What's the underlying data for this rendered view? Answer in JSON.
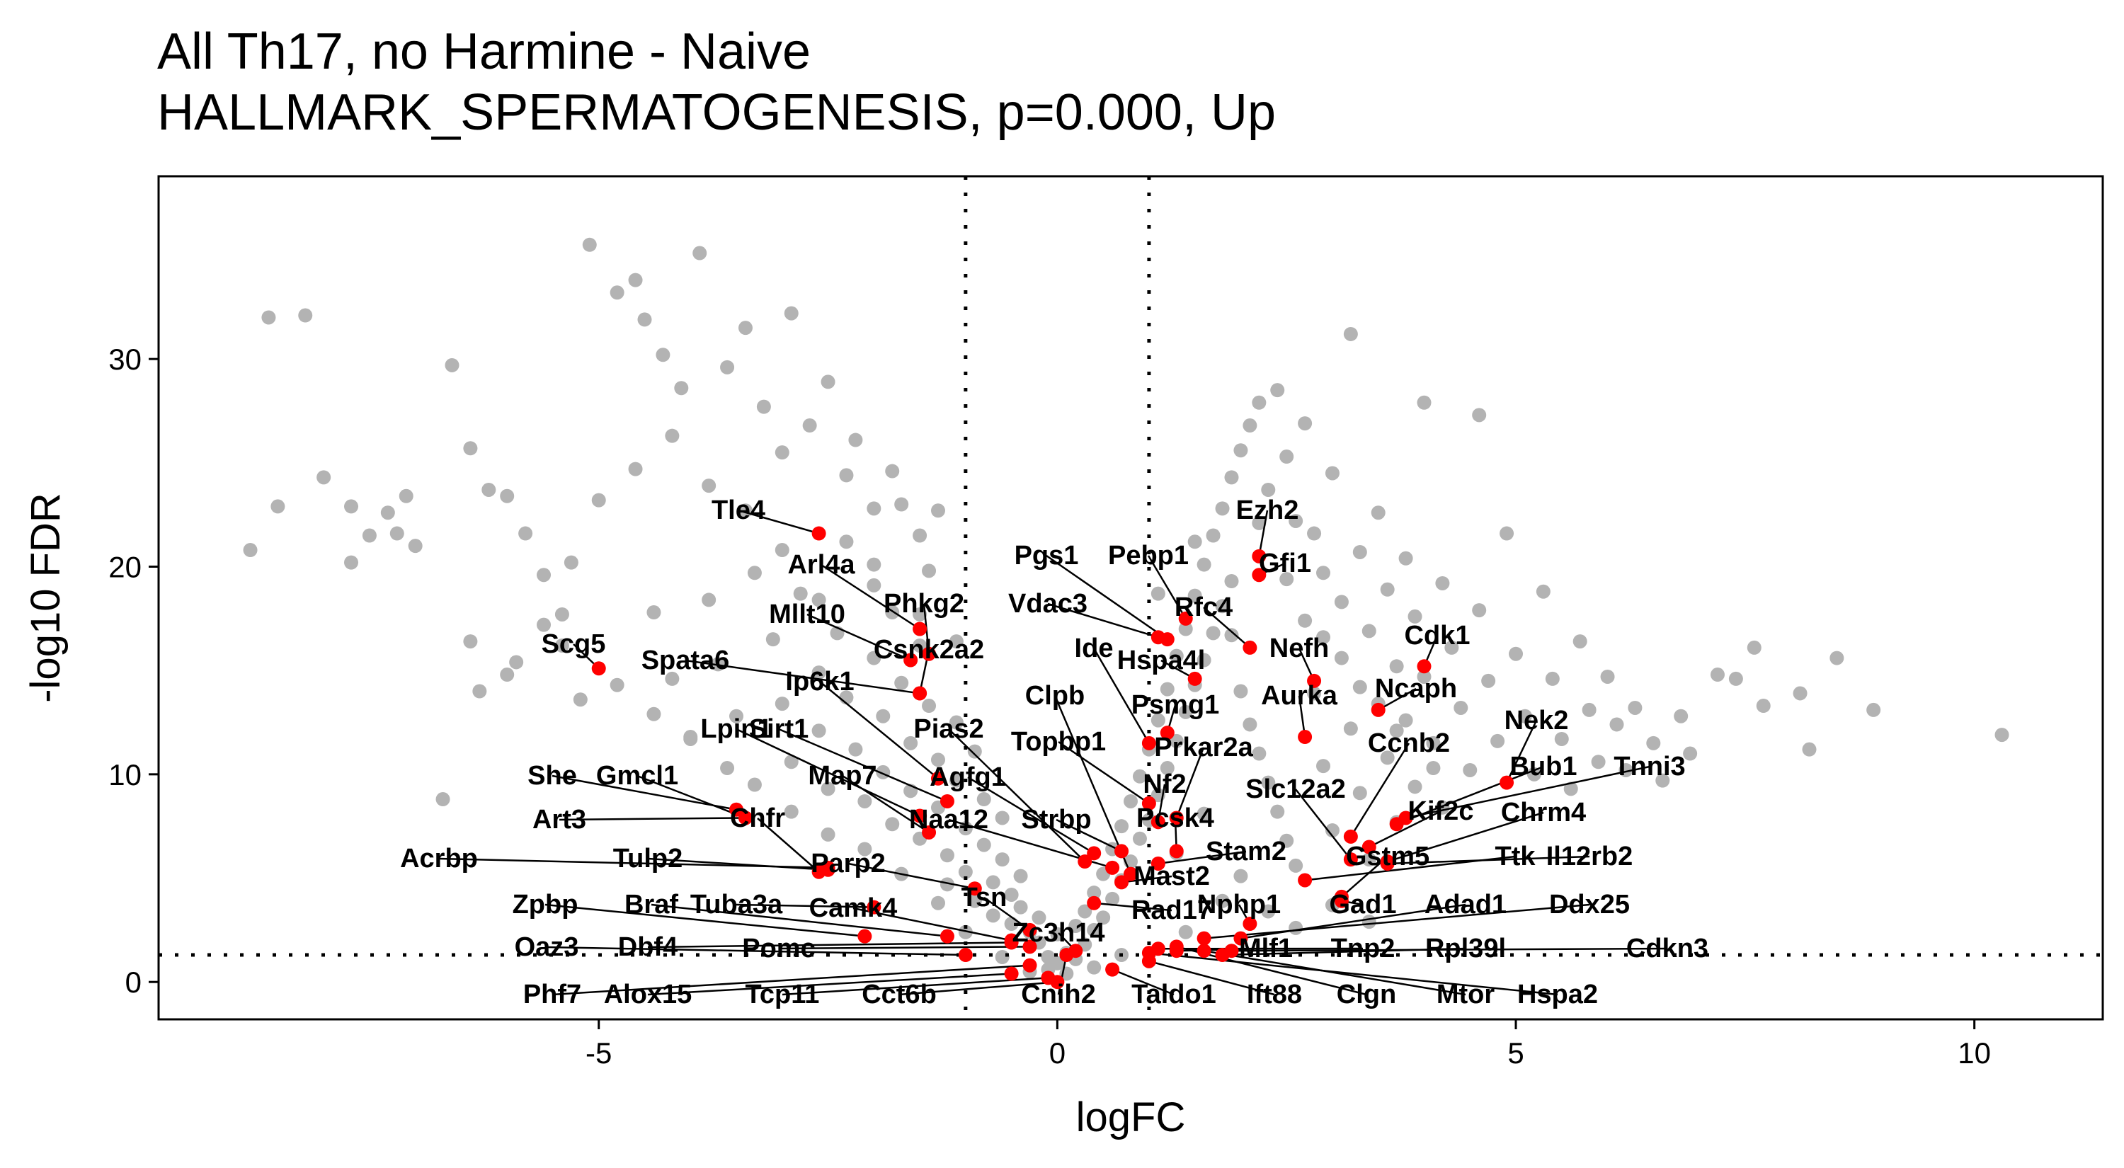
{
  "title_lines": [
    "All Th17, no Harmine - Naive",
    "HALLMARK_SPERMATOGENESIS, p=0.000, Up"
  ],
  "colors": {
    "background_points": "#b3b3b3",
    "highlight_points": "#ff0000",
    "threshold_lines": "#000000"
  },
  "chart_data": {
    "type": "scatter",
    "xlabel": "logFC",
    "ylabel": "-log10 FDR",
    "xlim": [
      -9.8,
      11.4
    ],
    "ylim": [
      -1.8,
      38.8
    ],
    "x_ticks": [
      -5,
      0,
      5,
      10
    ],
    "y_ticks": [
      0,
      10,
      20,
      30
    ],
    "grid": false,
    "thresholds": {
      "logFC": [
        -1,
        1
      ],
      "neg_log10_fdr": 1.3
    },
    "background_points": [
      [
        -8.6,
        32.0
      ],
      [
        -8.2,
        32.1
      ],
      [
        -8.5,
        22.9
      ],
      [
        -8.0,
        24.3
      ],
      [
        -7.7,
        22.9
      ],
      [
        -7.7,
        20.2
      ],
      [
        -7.5,
        21.5
      ],
      [
        -7.3,
        22.6
      ],
      [
        -7.2,
        21.6
      ],
      [
        -8.8,
        20.8
      ],
      [
        -7.0,
        21.0
      ],
      [
        -7.1,
        23.4
      ],
      [
        -6.6,
        29.7
      ],
      [
        -6.4,
        25.7
      ],
      [
        -6.2,
        23.7
      ],
      [
        -6.0,
        23.4
      ],
      [
        -5.8,
        21.6
      ],
      [
        -5.6,
        19.6
      ],
      [
        -5.4,
        17.7
      ],
      [
        -5.3,
        20.2
      ],
      [
        -5.1,
        35.5
      ],
      [
        -5.0,
        23.2
      ],
      [
        -4.8,
        33.2
      ],
      [
        -4.6,
        33.8
      ],
      [
        -4.5,
        31.9
      ],
      [
        -4.3,
        30.2
      ],
      [
        -4.1,
        28.6
      ],
      [
        -3.9,
        35.1
      ],
      [
        -3.6,
        29.6
      ],
      [
        -3.4,
        31.5
      ],
      [
        -3.2,
        27.7
      ],
      [
        -3.0,
        25.5
      ],
      [
        -2.9,
        32.2
      ],
      [
        -2.7,
        26.8
      ],
      [
        -2.5,
        28.9
      ],
      [
        -2.3,
        24.4
      ],
      [
        -2.2,
        26.1
      ],
      [
        -2.0,
        22.8
      ],
      [
        -1.8,
        24.6
      ],
      [
        -1.7,
        23.0
      ],
      [
        -1.5,
        21.5
      ],
      [
        -1.4,
        19.8
      ],
      [
        -1.3,
        22.7
      ],
      [
        -6.7,
        8.8
      ],
      [
        -6.4,
        16.4
      ],
      [
        -6.0,
        14.8
      ],
      [
        -5.6,
        17.2
      ],
      [
        -5.2,
        13.6
      ],
      [
        -4.4,
        17.8
      ],
      [
        -4.2,
        14.6
      ],
      [
        -4.0,
        11.7
      ],
      [
        -3.8,
        18.4
      ],
      [
        -3.7,
        15.3
      ],
      [
        -3.5,
        12.8
      ],
      [
        -3.3,
        19.7
      ],
      [
        -3.1,
        16.5
      ],
      [
        -3.0,
        13.4
      ],
      [
        -2.9,
        10.6
      ],
      [
        -2.8,
        18.7
      ],
      [
        -2.6,
        14.9
      ],
      [
        -2.6,
        12.1
      ],
      [
        -2.5,
        9.3
      ],
      [
        -2.4,
        16.8
      ],
      [
        -2.3,
        13.7
      ],
      [
        -2.2,
        11.2
      ],
      [
        -2.1,
        8.7
      ],
      [
        -2.0,
        19.1
      ],
      [
        -2.0,
        15.6
      ],
      [
        -1.9,
        12.8
      ],
      [
        -1.9,
        10.1
      ],
      [
        -1.8,
        7.6
      ],
      [
        -1.8,
        17.8
      ],
      [
        -1.7,
        14.4
      ],
      [
        -1.6,
        11.5
      ],
      [
        -1.6,
        9.2
      ],
      [
        -1.5,
        6.9
      ],
      [
        -1.5,
        16.2
      ],
      [
        -1.4,
        13.3
      ],
      [
        -1.3,
        10.7
      ],
      [
        -1.3,
        8.4
      ],
      [
        -1.2,
        6.1
      ],
      [
        -1.2,
        4.7
      ],
      [
        -1.1,
        12.5
      ],
      [
        -1.1,
        9.7
      ],
      [
        -1.0,
        7.4
      ],
      [
        -1.0,
        5.3
      ],
      [
        -0.9,
        3.9
      ],
      [
        -0.9,
        11.1
      ],
      [
        -0.8,
        8.8
      ],
      [
        -0.8,
        6.6
      ],
      [
        -0.7,
        4.8
      ],
      [
        -0.7,
        3.2
      ],
      [
        -0.6,
        7.9
      ],
      [
        -0.6,
        5.9
      ],
      [
        -0.5,
        4.2
      ],
      [
        -0.5,
        2.8
      ],
      [
        -0.4,
        5.1
      ],
      [
        -0.4,
        3.6
      ],
      [
        -0.3,
        2.4
      ],
      [
        -0.3,
        1.7
      ],
      [
        -0.2,
        3.1
      ],
      [
        -0.2,
        1.9
      ],
      [
        -0.1,
        1.2
      ],
      [
        -0.1,
        0.6
      ],
      [
        0.0,
        2.3
      ],
      [
        0.0,
        0.9
      ],
      [
        0.1,
        1.4
      ],
      [
        0.1,
        0.4
      ],
      [
        0.2,
        2.7
      ],
      [
        0.2,
        1.1
      ],
      [
        0.3,
        3.4
      ],
      [
        0.3,
        1.8
      ],
      [
        0.4,
        4.3
      ],
      [
        0.4,
        2.5
      ],
      [
        0.5,
        5.2
      ],
      [
        0.5,
        3.1
      ],
      [
        0.6,
        6.4
      ],
      [
        0.6,
        4.0
      ],
      [
        0.7,
        7.5
      ],
      [
        0.7,
        4.9
      ],
      [
        0.8,
        8.7
      ],
      [
        0.8,
        5.8
      ],
      [
        0.9,
        9.9
      ],
      [
        0.9,
        6.9
      ],
      [
        1.0,
        11.2
      ],
      [
        1.0,
        7.8
      ],
      [
        1.1,
        12.6
      ],
      [
        1.1,
        9.0
      ],
      [
        1.2,
        14.1
      ],
      [
        1.2,
        10.3
      ],
      [
        1.3,
        15.7
      ],
      [
        1.3,
        11.6
      ],
      [
        1.4,
        17.0
      ],
      [
        1.4,
        13.0
      ],
      [
        1.5,
        18.6
      ],
      [
        1.5,
        14.3
      ],
      [
        1.6,
        20.1
      ],
      [
        1.6,
        15.5
      ],
      [
        1.7,
        21.5
      ],
      [
        1.7,
        16.8
      ],
      [
        1.8,
        22.8
      ],
      [
        1.8,
        18.1
      ],
      [
        1.9,
        24.3
      ],
      [
        1.9,
        19.3
      ],
      [
        2.0,
        25.6
      ],
      [
        2.0,
        14.0
      ],
      [
        2.1,
        26.8
      ],
      [
        2.1,
        12.4
      ],
      [
        2.2,
        27.9
      ],
      [
        2.2,
        11.0
      ],
      [
        2.3,
        23.7
      ],
      [
        2.3,
        9.6
      ],
      [
        2.4,
        28.5
      ],
      [
        2.4,
        8.2
      ],
      [
        2.5,
        25.3
      ],
      [
        2.5,
        6.8
      ],
      [
        2.6,
        22.2
      ],
      [
        2.6,
        5.6
      ],
      [
        2.7,
        26.9
      ],
      [
        2.7,
        17.4
      ],
      [
        2.8,
        21.6
      ],
      [
        2.8,
        13.9
      ],
      [
        2.9,
        19.7
      ],
      [
        2.9,
        10.4
      ],
      [
        3.0,
        24.5
      ],
      [
        3.0,
        7.3
      ],
      [
        3.1,
        18.3
      ],
      [
        3.1,
        15.6
      ],
      [
        3.2,
        31.2
      ],
      [
        3.2,
        12.2
      ],
      [
        3.3,
        20.7
      ],
      [
        3.3,
        9.1
      ],
      [
        3.4,
        16.9
      ],
      [
        3.4,
        5.9
      ],
      [
        3.5,
        22.6
      ],
      [
        3.5,
        13.4
      ],
      [
        3.6,
        18.9
      ],
      [
        3.6,
        10.8
      ],
      [
        3.7,
        15.2
      ],
      [
        3.7,
        7.7
      ],
      [
        3.8,
        20.4
      ],
      [
        3.8,
        12.6
      ],
      [
        3.9,
        17.6
      ],
      [
        3.9,
        9.4
      ],
      [
        4.0,
        27.9
      ],
      [
        4.0,
        14.7
      ],
      [
        4.1,
        11.5
      ],
      [
        4.2,
        19.2
      ],
      [
        4.2,
        8.4
      ],
      [
        4.3,
        16.1
      ],
      [
        4.4,
        13.2
      ],
      [
        4.5,
        10.2
      ],
      [
        4.6,
        27.3
      ],
      [
        4.6,
        17.9
      ],
      [
        4.7,
        14.5
      ],
      [
        4.8,
        11.6
      ],
      [
        4.9,
        21.6
      ],
      [
        5.0,
        15.8
      ],
      [
        5.1,
        12.8
      ],
      [
        5.2,
        10.0
      ],
      [
        5.3,
        18.8
      ],
      [
        5.4,
        14.6
      ],
      [
        5.5,
        11.7
      ],
      [
        5.6,
        9.3
      ],
      [
        5.7,
        16.4
      ],
      [
        5.8,
        13.1
      ],
      [
        5.9,
        10.6
      ],
      [
        6.0,
        14.7
      ],
      [
        6.1,
        12.4
      ],
      [
        6.2,
        10.2
      ],
      [
        6.3,
        13.2
      ],
      [
        6.5,
        11.5
      ],
      [
        6.6,
        9.7
      ],
      [
        6.8,
        12.8
      ],
      [
        6.9,
        11.0
      ],
      [
        7.2,
        14.8
      ],
      [
        7.4,
        14.6
      ],
      [
        7.6,
        16.1
      ],
      [
        7.7,
        13.3
      ],
      [
        8.1,
        13.9
      ],
      [
        8.2,
        11.2
      ],
      [
        8.5,
        15.6
      ],
      [
        8.9,
        13.1
      ],
      [
        10.3,
        11.9
      ],
      [
        1.1,
        18.7
      ],
      [
        1.5,
        21.2
      ],
      [
        1.9,
        16.7
      ],
      [
        2.2,
        22.1
      ],
      [
        2.5,
        19.4
      ],
      [
        2.9,
        16.6
      ],
      [
        3.3,
        14.2
      ],
      [
        3.7,
        12.1
      ],
      [
        4.1,
        10.3
      ],
      [
        1.3,
        6.2
      ],
      [
        1.6,
        8.1
      ],
      [
        2.0,
        5.1
      ],
      [
        2.3,
        3.4
      ],
      [
        2.6,
        2.6
      ],
      [
        3.0,
        3.7
      ],
      [
        3.4,
        2.9
      ],
      [
        -1.1,
        16.4
      ],
      [
        -1.5,
        17.7
      ],
      [
        -2.0,
        20.1
      ],
      [
        -2.3,
        21.2
      ],
      [
        -2.6,
        18.4
      ],
      [
        -3.0,
        20.8
      ],
      [
        -3.4,
        22.7
      ],
      [
        -3.8,
        23.9
      ],
      [
        -4.2,
        26.3
      ],
      [
        -4.6,
        24.7
      ],
      [
        -1.0,
        2.4
      ],
      [
        -1.3,
        3.8
      ],
      [
        -1.7,
        5.2
      ],
      [
        -2.1,
        6.4
      ],
      [
        -2.5,
        7.1
      ],
      [
        -2.9,
        8.2
      ],
      [
        -3.3,
        9.5
      ],
      [
        -3.6,
        10.3
      ],
      [
        -4.0,
        11.8
      ],
      [
        -4.4,
        12.9
      ],
      [
        -4.8,
        14.3
      ],
      [
        -5.4,
        16.2
      ],
      [
        -5.9,
        15.4
      ],
      [
        -6.3,
        14.0
      ],
      [
        -0.6,
        1.2
      ],
      [
        -0.3,
        0.5
      ],
      [
        0.4,
        0.7
      ],
      [
        0.7,
        1.3
      ],
      [
        1.4,
        2.4
      ],
      [
        1.8,
        3.9
      ]
    ],
    "highlighted_genes": [
      {
        "gene": "Tle4",
        "x": -2.6,
        "y": 21.6
      },
      {
        "gene": "Arl4a",
        "x": -1.5,
        "y": 17.0
      },
      {
        "gene": "Phkg2",
        "x": -1.4,
        "y": 15.8
      },
      {
        "gene": "Mllt10",
        "x": -1.6,
        "y": 15.5
      },
      {
        "gene": "Spata6",
        "x": -1.5,
        "y": 13.9
      },
      {
        "gene": "Scg5",
        "x": -5.0,
        "y": 15.1
      },
      {
        "gene": "Csnk2a2",
        "x": -1.5,
        "y": 13.9
      },
      {
        "gene": "Ip6k1",
        "x": -1.3,
        "y": 9.8
      },
      {
        "gene": "Sirt1",
        "x": -1.2,
        "y": 8.7
      },
      {
        "gene": "Lpin1",
        "x": -1.5,
        "y": 8.0
      },
      {
        "gene": "Map7",
        "x": -1.4,
        "y": 7.2
      },
      {
        "gene": "She",
        "x": -3.5,
        "y": 8.3
      },
      {
        "gene": "Gmcl1",
        "x": -3.4,
        "y": 7.9
      },
      {
        "gene": "Art3",
        "x": -3.4,
        "y": 7.9
      },
      {
        "gene": "Chfr",
        "x": -2.6,
        "y": 5.3
      },
      {
        "gene": "Acrbp",
        "x": -2.5,
        "y": 5.5
      },
      {
        "gene": "Tulp2",
        "x": -2.5,
        "y": 5.4
      },
      {
        "gene": "Parp2",
        "x": -0.9,
        "y": 4.5
      },
      {
        "gene": "Zpbp",
        "x": -2.1,
        "y": 2.2
      },
      {
        "gene": "Braf",
        "x": -1.2,
        "y": 2.2
      },
      {
        "gene": "Tuba3a",
        "x": -2.0,
        "y": 3.6
      },
      {
        "gene": "Camk4",
        "x": -0.5,
        "y": 2.0
      },
      {
        "gene": "Tsn",
        "x": -0.3,
        "y": 2.5
      },
      {
        "gene": "Oaz3",
        "x": -1.0,
        "y": 1.3
      },
      {
        "gene": "Dbf4",
        "x": -0.5,
        "y": 1.9
      },
      {
        "gene": "Pomc",
        "x": -0.3,
        "y": 1.7
      },
      {
        "gene": "Phf7",
        "x": -0.3,
        "y": 0.8
      },
      {
        "gene": "Alox15",
        "x": -0.5,
        "y": 0.4
      },
      {
        "gene": "Tcp11",
        "x": -0.1,
        "y": 0.2
      },
      {
        "gene": "Cct6b",
        "x": 0.0,
        "y": 0.0
      },
      {
        "gene": "Pias2",
        "x": 0.3,
        "y": 5.8
      },
      {
        "gene": "Agfg1",
        "x": 0.4,
        "y": 6.2
      },
      {
        "gene": "Naa12",
        "x": 0.6,
        "y": 5.5
      },
      {
        "gene": "Strbp",
        "x": 0.7,
        "y": 6.3
      },
      {
        "gene": "Clpb",
        "x": 0.8,
        "y": 5.2
      },
      {
        "gene": "Topbp1",
        "x": 1.0,
        "y": 8.6
      },
      {
        "gene": "Nf2",
        "x": 1.1,
        "y": 7.7
      },
      {
        "gene": "Pcsk4",
        "x": 1.3,
        "y": 6.3
      },
      {
        "gene": "Mast2",
        "x": 0.7,
        "y": 4.8
      },
      {
        "gene": "Stam2",
        "x": 1.1,
        "y": 5.7
      },
      {
        "gene": "Rad17",
        "x": 0.4,
        "y": 3.8
      },
      {
        "gene": "Zc3h14",
        "x": 0.2,
        "y": 1.5
      },
      {
        "gene": "Cnih2",
        "x": 0.1,
        "y": 1.3
      },
      {
        "gene": "Taldo1",
        "x": 0.6,
        "y": 0.6
      },
      {
        "gene": "Ift88",
        "x": 1.0,
        "y": 1.0
      },
      {
        "gene": "Clgn",
        "x": 1.3,
        "y": 1.7
      },
      {
        "gene": "Mtor",
        "x": 1.6,
        "y": 1.5
      },
      {
        "gene": "Hspa2",
        "x": 1.0,
        "y": 1.4
      },
      {
        "gene": "Pgs1",
        "x": 1.2,
        "y": 16.5
      },
      {
        "gene": "Vdac3",
        "x": 1.1,
        "y": 16.6
      },
      {
        "gene": "Pebp1",
        "x": 1.4,
        "y": 17.5
      },
      {
        "gene": "Ide",
        "x": 1.0,
        "y": 11.5
      },
      {
        "gene": "Hspa4l",
        "x": 1.5,
        "y": 14.6
      },
      {
        "gene": "Psmg1",
        "x": 1.2,
        "y": 12.0
      },
      {
        "gene": "Prkar2a",
        "x": 1.3,
        "y": 7.9
      },
      {
        "gene": "Ezh2",
        "x": 2.2,
        "y": 20.5
      },
      {
        "gene": "Gfi1",
        "x": 2.2,
        "y": 19.6
      },
      {
        "gene": "Rfc4",
        "x": 2.1,
        "y": 16.1
      },
      {
        "gene": "Nefh",
        "x": 2.8,
        "y": 14.5
      },
      {
        "gene": "Aurka",
        "x": 2.7,
        "y": 11.8
      },
      {
        "gene": "Ncaph",
        "x": 3.5,
        "y": 13.1
      },
      {
        "gene": "Cdk1",
        "x": 4.0,
        "y": 15.2
      },
      {
        "gene": "Ccnb2",
        "x": 3.2,
        "y": 7.0
      },
      {
        "gene": "Slc12a2",
        "x": 3.2,
        "y": 5.9
      },
      {
        "gene": "Nek2",
        "x": 4.9,
        "y": 9.6
      },
      {
        "gene": "Bub1",
        "x": 3.7,
        "y": 7.6
      },
      {
        "gene": "Tnni3",
        "x": 3.8,
        "y": 7.9
      },
      {
        "gene": "Kif2c",
        "x": 3.4,
        "y": 6.5
      },
      {
        "gene": "Chrm4",
        "x": 3.6,
        "y": 5.8
      },
      {
        "gene": "Gstm5",
        "x": 3.1,
        "y": 4.1
      },
      {
        "gene": "Ttk",
        "x": 2.7,
        "y": 4.9
      },
      {
        "gene": "Il12rb2",
        "x": 3.6,
        "y": 5.7
      },
      {
        "gene": "Nphp1",
        "x": 2.1,
        "y": 2.8
      },
      {
        "gene": "Gad1",
        "x": 3.1,
        "y": 3.9
      },
      {
        "gene": "Adad1",
        "x": 2.0,
        "y": 2.1
      },
      {
        "gene": "Ddx25",
        "x": 1.6,
        "y": 2.1
      },
      {
        "gene": "Mlf1",
        "x": 1.3,
        "y": 1.5
      },
      {
        "gene": "Tnp2",
        "x": 1.1,
        "y": 1.6
      },
      {
        "gene": "Rpl39l",
        "x": 1.8,
        "y": 1.3
      },
      {
        "gene": "Cdkn3",
        "x": 1.9,
        "y": 1.5
      }
    ]
  }
}
